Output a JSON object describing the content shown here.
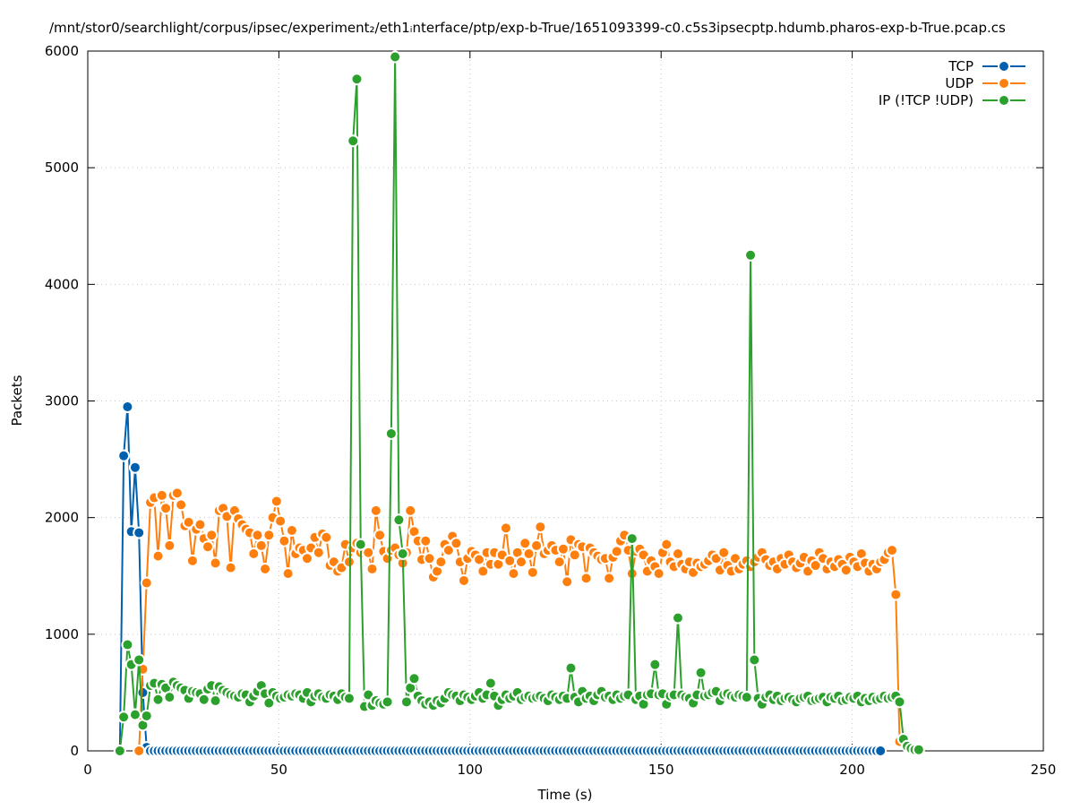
{
  "chart_data": {
    "type": "line",
    "title": "/mnt/stor0/searchlight/corpus/ipsec/experiment₂/eth1ᵢnterface/ptp/exp-b-True/1651093399-c0.c5s3ipsecptp.hdumb.pharos-exp-b-True.pcap.cs",
    "xlabel": "Time (s)",
    "ylabel": "Packets",
    "xlim": [
      0,
      250
    ],
    "ylim": [
      0,
      6000
    ],
    "xticks": [
      "0",
      "50",
      "100",
      "150",
      "200",
      "250"
    ],
    "yticks": [
      "0",
      "1000",
      "2000",
      "3000",
      "4000",
      "5000",
      "6000"
    ],
    "grid": true,
    "legend_position": "top-right",
    "series": [
      {
        "name": "TCP",
        "color": "#0060ad",
        "x_start": 8.4,
        "x_step": 1,
        "values": [
          0,
          2530,
          2950,
          1880,
          2430,
          1870,
          500,
          30,
          0,
          0,
          0,
          0,
          0,
          0,
          0,
          0,
          0,
          0,
          0,
          0,
          0,
          0,
          0,
          0,
          0,
          0,
          0,
          0,
          0,
          0,
          0,
          0,
          0,
          0,
          0,
          0,
          0,
          0,
          0,
          0,
          0,
          0,
          0,
          0,
          0,
          0,
          0,
          0,
          0,
          0,
          0,
          0,
          0,
          0,
          0,
          0,
          0,
          0,
          0,
          0,
          0,
          0,
          0,
          0,
          0,
          0,
          0,
          0,
          0,
          0,
          0,
          0,
          0,
          0,
          0,
          0,
          0,
          0,
          0,
          0,
          0,
          0,
          0,
          0,
          0,
          0,
          0,
          0,
          0,
          0,
          0,
          0,
          0,
          0,
          0,
          0,
          0,
          0,
          0,
          0,
          0,
          0,
          0,
          0,
          0,
          0,
          0,
          0,
          0,
          0,
          0,
          0,
          0,
          0,
          0,
          0,
          0,
          0,
          0,
          0,
          0,
          0,
          0,
          0,
          0,
          0,
          0,
          0,
          0,
          0,
          0,
          0,
          0,
          0,
          0,
          0,
          0,
          0,
          0,
          0,
          0,
          0,
          0,
          0,
          0,
          0,
          0,
          0,
          0,
          0,
          0,
          0,
          0,
          0,
          0,
          0,
          0,
          0,
          0,
          0,
          0,
          0,
          0,
          0,
          0,
          0,
          0,
          0,
          0,
          0,
          0,
          0,
          0,
          0,
          0,
          0,
          0,
          0,
          0,
          0,
          0,
          0,
          0,
          0,
          0,
          0,
          0,
          0,
          0,
          0,
          0,
          0,
          0,
          0,
          0,
          0,
          0,
          0,
          0,
          0
        ]
      },
      {
        "name": "UDP",
        "color": "#ff7f0e",
        "x_start": 13.4,
        "x_step": 1,
        "values": [
          0,
          700,
          1440,
          2130,
          2170,
          1670,
          2190,
          2080,
          1760,
          2190,
          2210,
          2110,
          1930,
          1960,
          1630,
          1900,
          1940,
          1820,
          1750,
          1850,
          1610,
          2060,
          2080,
          2010,
          1570,
          2060,
          1990,
          1940,
          1900,
          1870,
          1690,
          1850,
          1760,
          1560,
          1850,
          2000,
          2140,
          1970,
          1800,
          1520,
          1890,
          1690,
          1740,
          1720,
          1650,
          1740,
          1830,
          1700,
          1860,
          1830,
          1590,
          1620,
          1540,
          1570,
          1770,
          1620,
          1740,
          1780,
          1700,
          1720,
          1700,
          1560,
          2060,
          1850,
          1710,
          1650,
          1720,
          1740,
          1680,
          1610,
          1700,
          2060,
          1880,
          1800,
          1640,
          1800,
          1650,
          1490,
          1540,
          1620,
          1770,
          1720,
          1840,
          1780,
          1620,
          1460,
          1650,
          1710,
          1680,
          1640,
          1540,
          1700,
          1600,
          1700,
          1600,
          1680,
          1910,
          1630,
          1520,
          1700,
          1620,
          1780,
          1690,
          1530,
          1760,
          1920,
          1690,
          1720,
          1760,
          1720,
          1620,
          1730,
          1450,
          1810,
          1680,
          1770,
          1750,
          1480,
          1740,
          1700,
          1670,
          1640,
          1650,
          1480,
          1660,
          1710,
          1800,
          1850,
          1720,
          1520,
          1710,
          1730,
          1680,
          1540,
          1630,
          1580,
          1520,
          1700,
          1770,
          1620,
          1580,
          1690,
          1600,
          1560,
          1620,
          1530,
          1610,
          1580,
          1600,
          1630,
          1680,
          1650,
          1550,
          1700,
          1590,
          1540,
          1650,
          1560,
          1600,
          1630,
          1580,
          1620,
          1660,
          1700,
          1640,
          1590,
          1620,
          1560,
          1650,
          1600,
          1680,
          1620,
          1570,
          1610,
          1660,
          1540,
          1630,
          1590,
          1700,
          1650,
          1560,
          1620,
          1580,
          1640,
          1600,
          1550,
          1660,
          1620,
          1580,
          1690,
          1610,
          1540,
          1600,
          1560,
          1620,
          1640,
          1700,
          1720,
          1340,
          80
        ]
      },
      {
        "name": "IP (!TCP  !UDP)",
        "color": "#2ca02c",
        "x_start": 8.4,
        "x_step": 1,
        "values": [
          0,
          290,
          910,
          740,
          310,
          780,
          220,
          300,
          560,
          580,
          440,
          570,
          540,
          460,
          590,
          560,
          540,
          520,
          450,
          510,
          500,
          490,
          440,
          530,
          560,
          430,
          550,
          520,
          500,
          480,
          470,
          460,
          490,
          480,
          420,
          470,
          510,
          560,
          490,
          410,
          500,
          470,
          450,
          460,
          480,
          470,
          490,
          480,
          450,
          500,
          420,
          470,
          490,
          460,
          450,
          480,
          470,
          440,
          490,
          460,
          450,
          5230,
          5760,
          1770,
          380,
          480,
          390,
          430,
          410,
          400,
          420,
          2720,
          5950,
          1980,
          1690,
          420,
          540,
          620,
          470,
          430,
          400,
          420,
          390,
          430,
          410,
          450,
          500,
          480,
          470,
          430,
          480,
          460,
          440,
          470,
          500,
          450,
          480,
          580,
          470,
          390,
          440,
          480,
          450,
          470,
          500,
          440,
          460,
          470,
          450,
          460,
          470,
          450,
          430,
          480,
          460,
          440,
          470,
          450,
          710,
          460,
          420,
          510,
          450,
          470,
          430,
          480,
          510,
          460,
          470,
          440,
          480,
          450,
          470,
          480,
          1820,
          440,
          470,
          400,
          480,
          490,
          740,
          480,
          490,
          400,
          470,
          480,
          1140,
          480,
          460,
          450,
          410,
          480,
          670,
          470,
          480,
          500,
          510,
          430,
          480,
          490,
          470,
          460,
          480,
          470,
          460,
          4250,
          780,
          450,
          400,
          460,
          480,
          440,
          470,
          430,
          450,
          460,
          440,
          420,
          450,
          460,
          470,
          430,
          440,
          450,
          460,
          420,
          460,
          450,
          470,
          430,
          440,
          460,
          450,
          470,
          420,
          450,
          430,
          460,
          440,
          450,
          470,
          450,
          460,
          470,
          420,
          100,
          40,
          20,
          10,
          10
        ]
      }
    ]
  }
}
